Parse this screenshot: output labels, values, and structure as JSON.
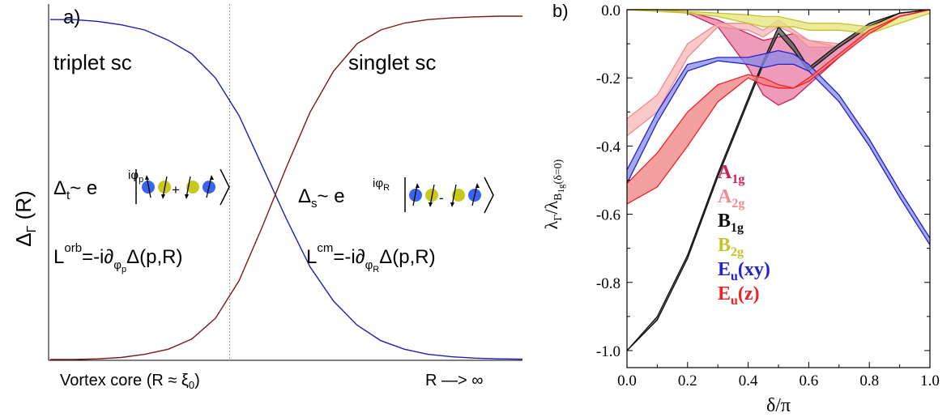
{
  "panel_a": {
    "label": "a)",
    "ylabel_main": "Δ",
    "ylabel_sub": "Γ",
    "ylabel_tail": " (R)",
    "left_region": "triplet sc",
    "right_region": "singlet sc",
    "x_left": "Vortex core (R ≈ ξ",
    "x_left_sub": "0",
    "x_left_close": ")",
    "x_right": "R —> ∞",
    "eq_t_lhs": "Δ",
    "eq_t_lhs_sub": "t",
    "eq_t_tilde": "~  e",
    "eq_t_exp": "iφ",
    "eq_t_exp_sub": "p",
    "eq_t_plus": "+",
    "eq_s_lhs": "Δ",
    "eq_s_lhs_sub": "s",
    "eq_s_tilde": "~  e",
    "eq_s_exp": "iφ",
    "eq_s_exp_sub": "R",
    "eq_s_minus": "-",
    "l_orb_L": "L",
    "l_orb_sup": "orb",
    "l_orb_eq": "=-i∂",
    "l_orb_sub": "φ",
    "l_orb_subsub": "p",
    "l_orb_rhs": "Δ(p,R)",
    "l_cm_L": "L",
    "l_cm_sup": "cm",
    "l_cm_eq": "=-i∂",
    "l_cm_sub": "φ",
    "l_cm_subsub": "R",
    "l_cm_rhs": "Δ(p,R)",
    "colors": {
      "triplet": "#1f1fb0",
      "singlet": "#7a1a14",
      "spin_blue": "#3a64f0",
      "spin_yellow": "#c8c81e"
    }
  },
  "panel_b": {
    "label": "b)",
    "xlabel": "δ/π",
    "ylabel_lambda": "λ",
    "ylabel_sub": "Γ",
    "ylabel_mid": "/λ",
    "ylabel_sub2": "B",
    "ylabel_sub3": "1g",
    "ylabel_tail": "(δ=0)",
    "legend": [
      {
        "base": "A",
        "sub": "1g",
        "color": "#cc1f5b"
      },
      {
        "base": "A",
        "sub": "2g",
        "color": "#f08a93"
      },
      {
        "base": "B",
        "sub": "1g",
        "color": "#111111"
      },
      {
        "base": "B",
        "sub": "2g",
        "color": "#c4c42a"
      },
      {
        "base": "E",
        "sub": "u",
        "tail": "(xy)",
        "color": "#2222cc"
      },
      {
        "base": "E",
        "sub": "u",
        "tail": "(z)",
        "color": "#ee2222"
      }
    ]
  },
  "chart_data": [
    {
      "type": "line",
      "title": "",
      "xlabel": "",
      "ylabel": "",
      "x_ticks": [
        "Vortex core (R ≈ ξ0)",
        "R —> ∞"
      ],
      "x": [
        0.0,
        0.05,
        0.1,
        0.15,
        0.2,
        0.25,
        0.3,
        0.35,
        0.4,
        0.45,
        0.5,
        0.55,
        0.6,
        0.65,
        0.7,
        0.75,
        0.8,
        0.85,
        0.9,
        0.95,
        1.0
      ],
      "series": [
        {
          "name": "triplet sc",
          "values": [
            0.99,
            0.99,
            0.985,
            0.975,
            0.96,
            0.93,
            0.89,
            0.82,
            0.71,
            0.56,
            0.41,
            0.27,
            0.17,
            0.1,
            0.055,
            0.03,
            0.015,
            0.008,
            0.004,
            0.002,
            0.001
          ]
        },
        {
          "name": "singlet sc",
          "values": [
            0.0,
            0.0,
            0.002,
            0.006,
            0.015,
            0.03,
            0.06,
            0.12,
            0.23,
            0.39,
            0.56,
            0.72,
            0.84,
            0.92,
            0.96,
            0.98,
            0.99,
            0.995,
            0.998,
            1.0,
            1.0
          ]
        }
      ],
      "divider_x": 0.38
    },
    {
      "type": "area",
      "title": "",
      "xlabel": "δ/π",
      "ylabel": "λΓ/λB1g(δ=0)",
      "xlim": [
        0,
        1
      ],
      "ylim": [
        -1.05,
        0
      ],
      "x_ticks": [
        0.0,
        0.2,
        0.4,
        0.6,
        0.8,
        1.0
      ],
      "y_ticks": [
        0.0,
        -0.2,
        -0.4,
        -0.6,
        -0.8,
        -1.0
      ],
      "x": [
        0.0,
        0.1,
        0.2,
        0.3,
        0.4,
        0.45,
        0.5,
        0.55,
        0.6,
        0.7,
        0.8,
        0.9,
        1.0
      ],
      "series": [
        {
          "name": "A1g",
          "upper": [
            0.0,
            0.0,
            -0.005,
            -0.03,
            -0.07,
            -0.09,
            -0.08,
            -0.07,
            -0.09,
            -0.11,
            -0.05,
            -0.01,
            0.0
          ],
          "lower": [
            0.0,
            0.0,
            -0.01,
            -0.05,
            -0.17,
            -0.25,
            -0.28,
            -0.26,
            -0.22,
            -0.14,
            -0.06,
            -0.02,
            0.0
          ]
        },
        {
          "name": "A2g",
          "upper": [
            -0.32,
            -0.25,
            -0.1,
            -0.04,
            -0.04,
            -0.06,
            -0.03,
            -0.06,
            -0.09,
            -0.1,
            -0.05,
            -0.01,
            0.0
          ],
          "lower": [
            -0.37,
            -0.3,
            -0.14,
            -0.05,
            -0.06,
            -0.08,
            -0.05,
            -0.07,
            -0.11,
            -0.11,
            -0.06,
            -0.02,
            0.0
          ]
        },
        {
          "name": "B1g",
          "upper": [
            -1.0,
            -0.9,
            -0.72,
            -0.48,
            -0.26,
            -0.15,
            -0.05,
            -0.1,
            -0.17,
            -0.1,
            -0.04,
            -0.01,
            0.0
          ],
          "lower": [
            -1.0,
            -0.91,
            -0.73,
            -0.49,
            -0.27,
            -0.16,
            -0.07,
            -0.12,
            -0.18,
            -0.11,
            -0.05,
            -0.01,
            0.0
          ]
        },
        {
          "name": "B2g",
          "upper": [
            0.0,
            0.0,
            -0.005,
            -0.01,
            -0.015,
            -0.02,
            -0.02,
            -0.03,
            -0.04,
            -0.04,
            -0.05,
            -0.02,
            0.0
          ],
          "lower": [
            0.0,
            -0.005,
            -0.01,
            -0.02,
            -0.04,
            -0.05,
            -0.05,
            -0.05,
            -0.06,
            -0.06,
            -0.07,
            -0.04,
            -0.01
          ]
        },
        {
          "name": "Eu(xy)",
          "upper": [
            -0.47,
            -0.3,
            -0.16,
            -0.14,
            -0.14,
            -0.13,
            -0.12,
            -0.13,
            -0.16,
            -0.25,
            -0.38,
            -0.53,
            -0.67
          ],
          "lower": [
            -0.51,
            -0.33,
            -0.18,
            -0.15,
            -0.16,
            -0.17,
            -0.16,
            -0.16,
            -0.18,
            -0.27,
            -0.4,
            -0.55,
            -0.69
          ]
        },
        {
          "name": "Eu(z)",
          "upper": [
            -0.51,
            -0.42,
            -0.3,
            -0.22,
            -0.19,
            -0.2,
            -0.22,
            -0.23,
            -0.2,
            -0.13,
            -0.06,
            -0.02,
            0.0
          ],
          "lower": [
            -0.57,
            -0.52,
            -0.4,
            -0.27,
            -0.2,
            -0.22,
            -0.23,
            -0.23,
            -0.21,
            -0.14,
            -0.07,
            -0.02,
            0.0
          ]
        }
      ]
    }
  ]
}
